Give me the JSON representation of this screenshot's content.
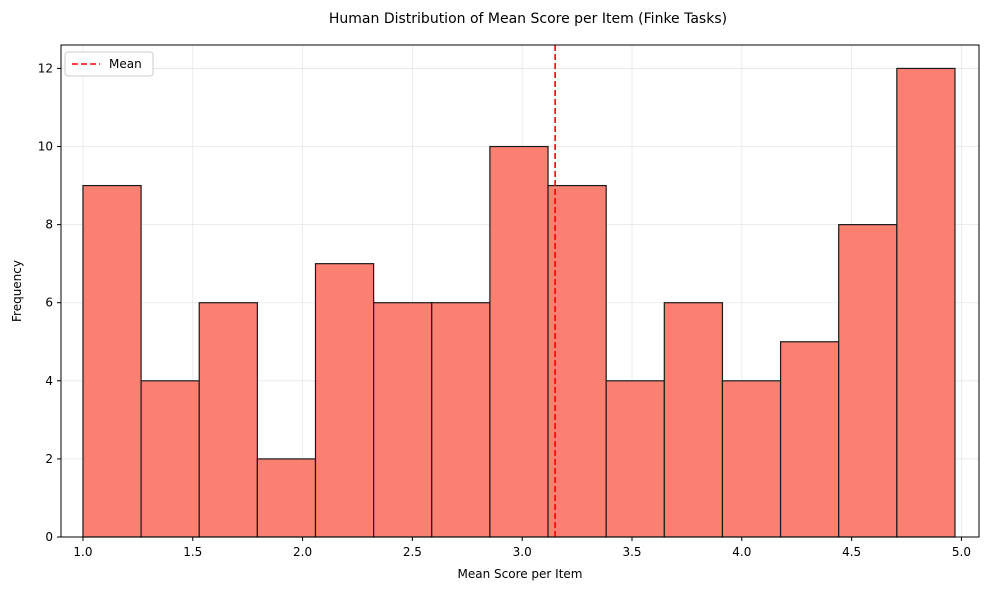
{
  "chart_data": {
    "type": "bar",
    "title": "Human Distribution of Mean Score per Item (Finke Tasks)",
    "xlabel": "Mean Score per Item",
    "ylabel": "Frequency",
    "bins": [
      {
        "start": 1.0,
        "end": 1.2647,
        "value": 9
      },
      {
        "start": 1.2647,
        "end": 1.5294,
        "value": 4
      },
      {
        "start": 1.5294,
        "end": 1.7941,
        "value": 6
      },
      {
        "start": 1.7941,
        "end": 2.0588,
        "value": 2
      },
      {
        "start": 2.0588,
        "end": 2.3235,
        "value": 7
      },
      {
        "start": 2.3235,
        "end": 2.5882,
        "value": 6
      },
      {
        "start": 2.5882,
        "end": 2.8529,
        "value": 6
      },
      {
        "start": 2.8529,
        "end": 3.1176,
        "value": 10
      },
      {
        "start": 3.1176,
        "end": 3.3824,
        "value": 9
      },
      {
        "start": 3.3824,
        "end": 3.6471,
        "value": 4
      },
      {
        "start": 3.6471,
        "end": 3.9118,
        "value": 6
      },
      {
        "start": 3.9118,
        "end": 4.1765,
        "value": 4
      },
      {
        "start": 4.1765,
        "end": 4.4412,
        "value": 5
      },
      {
        "start": 4.4412,
        "end": 4.7059,
        "value": 8
      },
      {
        "start": 4.7059,
        "end": 4.9706,
        "value": 12
      }
    ],
    "mean": 3.15,
    "xlim": [
      0.9,
      5.08
    ],
    "ylim": [
      0,
      12.6
    ],
    "xticks": [
      1.0,
      1.5,
      2.0,
      2.5,
      3.0,
      3.5,
      4.0,
      4.5,
      5.0
    ],
    "xtick_labels": [
      "1.0",
      "1.5",
      "2.0",
      "2.5",
      "3.0",
      "3.5",
      "4.0",
      "4.5",
      "5.0"
    ],
    "yticks": [
      0,
      2,
      4,
      6,
      8,
      10,
      12
    ],
    "ytick_labels": [
      "0",
      "2",
      "4",
      "6",
      "8",
      "10",
      "12"
    ],
    "legend": {
      "position": "upper-left",
      "entries": [
        {
          "label": "Mean",
          "style": "dashed",
          "color": "#ff0000"
        }
      ]
    },
    "grid": true,
    "colors": {
      "bar_fill": "#fa8072",
      "bar_edge": "#1a1a1a",
      "mean_line": "#ff0000",
      "grid": "#e6e6e6"
    }
  }
}
